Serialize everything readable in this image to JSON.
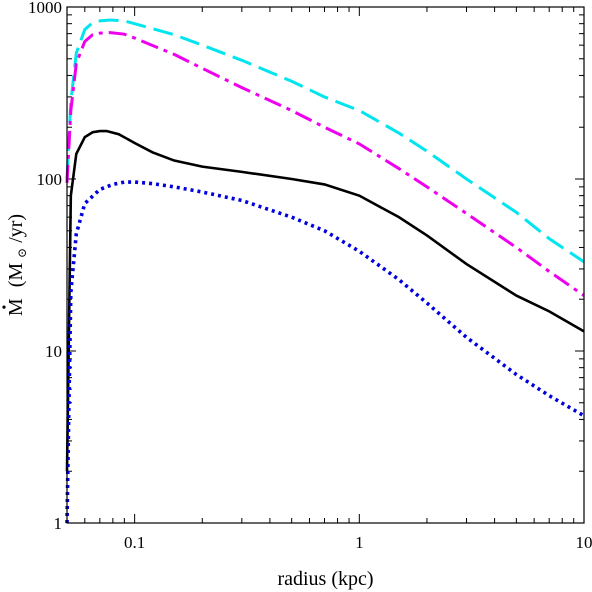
{
  "chart_data": {
    "type": "line",
    "title": "",
    "xlabel": "radius (kpc)",
    "ylabel": {
      "symbol": "M",
      "unit_open": "(M",
      "unit_sub": "⊙",
      "unit_close": "/yr)"
    },
    "x_scale": "log",
    "y_scale": "log",
    "xlim": [
      0.05,
      10
    ],
    "ylim": [
      1,
      1000
    ],
    "grid": false,
    "legend": "none",
    "x_ticks_major": [
      {
        "value": 0.1,
        "label": "0.1"
      },
      {
        "value": 1,
        "label": "1"
      },
      {
        "value": 10,
        "label": "10"
      }
    ],
    "y_ticks_major": [
      {
        "value": 1,
        "label": "1"
      },
      {
        "value": 10,
        "label": "10"
      },
      {
        "value": 100,
        "label": "100"
      },
      {
        "value": 1000,
        "label": "1000"
      }
    ],
    "series": [
      {
        "color": "#00e5ee",
        "style": "dashed",
        "x": [
          0.05,
          0.052,
          0.055,
          0.06,
          0.065,
          0.07,
          0.078,
          0.09,
          0.1,
          0.15,
          0.2,
          0.3,
          0.5,
          0.7,
          1,
          1.5,
          2,
          3,
          5,
          7,
          10
        ],
        "y": [
          100,
          280,
          540,
          740,
          810,
          830,
          840,
          830,
          800,
          690,
          600,
          490,
          370,
          300,
          250,
          185,
          145,
          100,
          64,
          45,
          33
        ]
      },
      {
        "color": "#ee00ee",
        "style": "dash-dot",
        "x": [
          0.05,
          0.052,
          0.055,
          0.06,
          0.065,
          0.07,
          0.078,
          0.09,
          0.1,
          0.15,
          0.2,
          0.3,
          0.5,
          0.7,
          1,
          1.5,
          2,
          3,
          5,
          7,
          10
        ],
        "y": [
          95,
          250,
          470,
          630,
          690,
          705,
          710,
          695,
          660,
          530,
          440,
          340,
          250,
          200,
          160,
          115,
          90,
          63,
          40,
          29,
          21
        ]
      },
      {
        "color": "#000000",
        "style": "solid",
        "x": [
          0.05,
          0.052,
          0.055,
          0.06,
          0.065,
          0.07,
          0.075,
          0.085,
          0.1,
          0.12,
          0.15,
          0.2,
          0.3,
          0.5,
          0.7,
          1,
          1.5,
          2,
          3,
          5,
          7,
          10
        ],
        "y": [
          2,
          80,
          140,
          175,
          187,
          190,
          190,
          182,
          162,
          143,
          128,
          118,
          110,
          100,
          93,
          80,
          60,
          47,
          32,
          21,
          17,
          13
        ]
      },
      {
        "color": "#0000dd",
        "style": "dotted",
        "x": [
          0.05,
          0.051,
          0.052,
          0.055,
          0.06,
          0.07,
          0.08,
          0.09,
          0.1,
          0.12,
          0.15,
          0.2,
          0.3,
          0.5,
          0.7,
          1,
          1.5,
          2,
          3,
          5,
          7,
          10
        ],
        "y": [
          1,
          5,
          22,
          48,
          72,
          87,
          93,
          96,
          96,
          94,
          90,
          84,
          75,
          60,
          50,
          38,
          26,
          19,
          12,
          7.3,
          5.5,
          4.2
        ]
      }
    ]
  }
}
